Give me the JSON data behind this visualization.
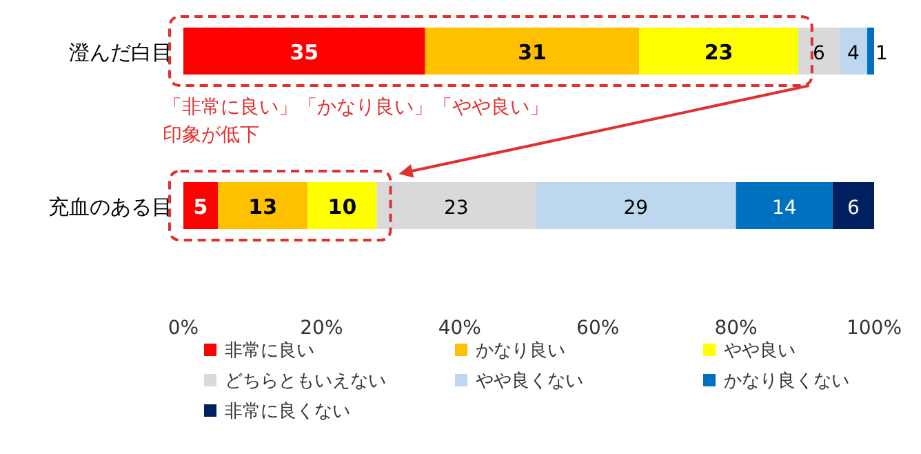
{
  "chart_data": {
    "type": "bar",
    "orientation": "horizontal",
    "stacked": true,
    "categories": [
      "澄んだ白目",
      "充血のある目"
    ],
    "series": [
      {
        "name": "非常に良い",
        "color": "#ff0000",
        "values": [
          35,
          5
        ],
        "value_labels": [
          "35",
          "5"
        ]
      },
      {
        "name": "かなり良い",
        "color": "#ffc000",
        "values": [
          31,
          13
        ],
        "value_labels": [
          "31",
          "13"
        ]
      },
      {
        "name": "やや良い",
        "color": "#ffff00",
        "values": [
          23,
          10
        ],
        "value_labels": [
          "23",
          "10"
        ]
      },
      {
        "name": "どちらともいえない",
        "color": "#d9d9d9",
        "values": [
          6,
          23
        ],
        "value_labels": [
          "6",
          "23"
        ]
      },
      {
        "name": "やや良くない",
        "color": "#bdd7ee",
        "values": [
          4,
          29
        ],
        "value_labels": [
          "4",
          "29"
        ]
      },
      {
        "name": "かなり良くない",
        "color": "#0070c0",
        "values": [
          1,
          14
        ],
        "value_labels": [
          "1",
          "14"
        ]
      },
      {
        "name": "非常に良くない",
        "color": "#002060",
        "values": [
          0,
          6
        ],
        "value_labels": [
          null,
          "6"
        ]
      }
    ],
    "xlim": [
      0,
      100
    ],
    "xticks": [
      {
        "value": 0,
        "label": "0%"
      },
      {
        "value": 20,
        "label": "20%"
      },
      {
        "value": 40,
        "label": "40%"
      },
      {
        "value": 60,
        "label": "60%"
      },
      {
        "value": 80,
        "label": "80%"
      },
      {
        "value": 100,
        "label": "100%"
      }
    ],
    "annotations": [
      "「非常に良い」「かなり良い」「やや良い」",
      "印象が低下"
    ],
    "legend": "bottom"
  }
}
